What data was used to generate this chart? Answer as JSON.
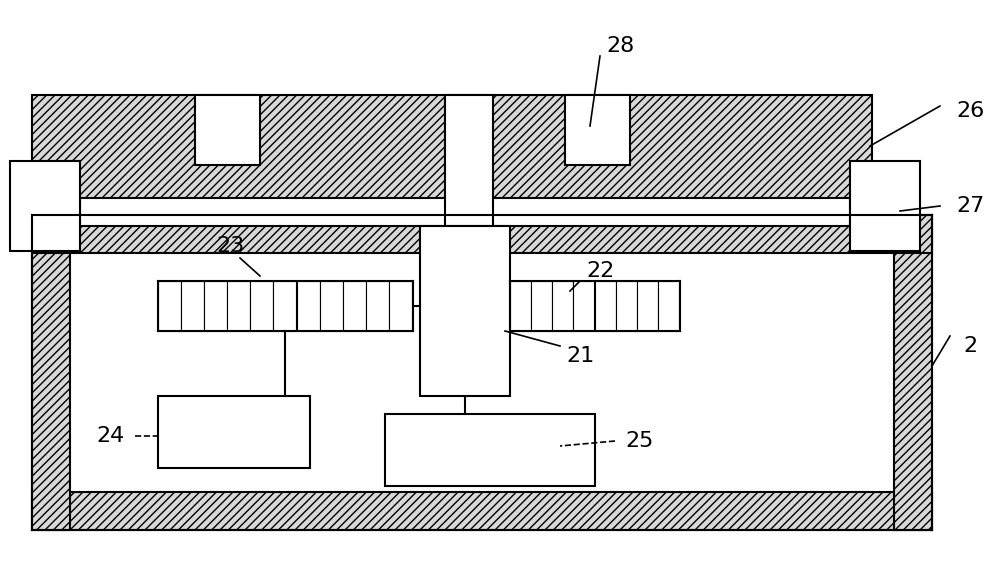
{
  "bg_color": "#ffffff",
  "lc": "#000000",
  "lw": 1.5,
  "fig_w": 10.0,
  "fig_h": 5.66,
  "dpi": 100
}
